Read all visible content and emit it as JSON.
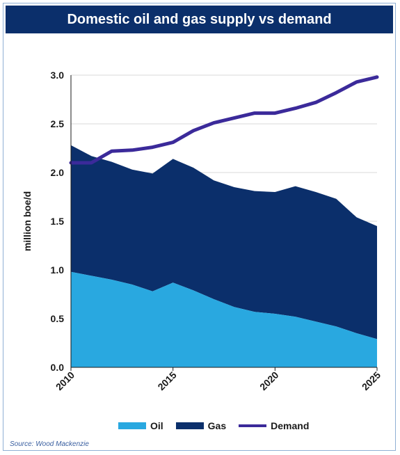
{
  "colors": {
    "oil": "#29a8e0",
    "gas": "#0b2f6b",
    "demand": "#3b2a9a",
    "header_bg": "#0b2f6b",
    "grid": "#d9d9d9"
  },
  "chart_data": {
    "type": "area",
    "title": "Domestic oil and gas supply vs demand",
    "ylabel": "million boe/d",
    "xlabel": "",
    "xlim": [
      2010,
      2025
    ],
    "ylim": [
      0,
      3.0
    ],
    "yticks": [
      "0.0",
      "0.5",
      "1.0",
      "1.5",
      "2.0",
      "2.5",
      "3.0"
    ],
    "xticks": [
      "2010",
      "2015",
      "2020",
      "2025"
    ],
    "grid": true,
    "legend_position": "bottom",
    "x": [
      2010,
      2011,
      2012,
      2013,
      2014,
      2015,
      2016,
      2017,
      2018,
      2019,
      2020,
      2021,
      2022,
      2023,
      2024,
      2025
    ],
    "series": [
      {
        "name": "Oil",
        "kind": "area",
        "values": [
          0.98,
          0.94,
          0.9,
          0.85,
          0.78,
          0.87,
          0.79,
          0.7,
          0.62,
          0.57,
          0.55,
          0.52,
          0.47,
          0.42,
          0.35,
          0.29
        ]
      },
      {
        "name": "Gas",
        "kind": "stacked-area",
        "values": [
          1.3,
          1.23,
          1.21,
          1.18,
          1.21,
          1.27,
          1.26,
          1.22,
          1.23,
          1.24,
          1.25,
          1.34,
          1.33,
          1.31,
          1.19,
          1.16
        ]
      },
      {
        "name": "Demand",
        "kind": "line",
        "values": [
          2.1,
          2.1,
          2.22,
          2.23,
          2.26,
          2.31,
          2.43,
          2.51,
          2.56,
          2.61,
          2.61,
          2.66,
          2.72,
          2.82,
          2.93,
          2.98
        ]
      }
    ],
    "source": "Source: Wood Mackenzie"
  }
}
